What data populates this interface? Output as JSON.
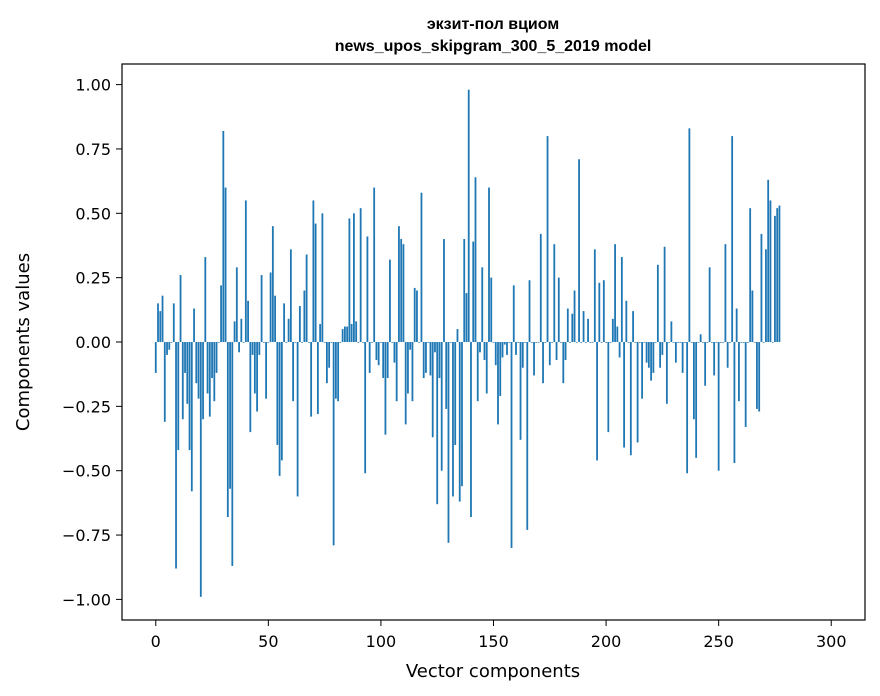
{
  "chart_data": {
    "type": "bar",
    "title_line1": "экзит-пол вциом",
    "title_line2": "news_upos_skipgram_300_5_2019 model",
    "xlabel": "Vector components",
    "ylabel": "Components values",
    "xlim": [
      -15,
      315
    ],
    "ylim": [
      -1.08,
      1.08
    ],
    "xticks": [
      0,
      50,
      100,
      150,
      200,
      250,
      300
    ],
    "xtick_labels": [
      "0",
      "50",
      "100",
      "150",
      "200",
      "250",
      "300"
    ],
    "yticks": [
      1.0,
      0.75,
      0.5,
      0.25,
      0.0,
      -0.25,
      -0.5,
      -0.75,
      -1.0
    ],
    "ytick_labels": [
      "1.00",
      "0.75",
      "0.50",
      "0.25",
      "0.00",
      "−0.25",
      "−0.50",
      "−0.75",
      "−1.00"
    ],
    "bar_color": "#1f77b4",
    "grid": false,
    "x_start": 0,
    "values": [
      -0.12,
      0.15,
      0.12,
      0.18,
      -0.31,
      -0.05,
      -0.03,
      0.0,
      0.15,
      -0.88,
      -0.42,
      0.26,
      -0.3,
      -0.12,
      -0.24,
      -0.42,
      -0.58,
      0.13,
      -0.16,
      -0.22,
      -0.99,
      -0.3,
      0.33,
      -0.2,
      -0.29,
      -0.14,
      -0.23,
      -0.12,
      0.0,
      0.22,
      0.82,
      0.6,
      -0.68,
      -0.57,
      -0.87,
      0.08,
      0.29,
      -0.04,
      0.09,
      0.0,
      0.55,
      0.16,
      -0.35,
      -0.05,
      -0.2,
      -0.27,
      -0.05,
      0.26,
      0.0,
      -0.22,
      0.0,
      0.27,
      0.45,
      0.18,
      -0.4,
      -0.52,
      -0.46,
      0.15,
      0.0,
      0.09,
      0.36,
      -0.23,
      0.0,
      -0.6,
      0.14,
      0.0,
      0.2,
      0.34,
      0.0,
      -0.29,
      0.55,
      0.46,
      -0.28,
      0.07,
      0.5,
      0.0,
      -0.16,
      -0.1,
      0.0,
      -0.79,
      -0.22,
      -0.23,
      0.0,
      0.05,
      0.06,
      0.06,
      0.48,
      0.07,
      0.5,
      0.08,
      0.0,
      0.52,
      0.0,
      -0.51,
      0.41,
      -0.12,
      0.0,
      0.6,
      -0.07,
      -0.09,
      0.0,
      -0.14,
      -0.36,
      -0.14,
      0.32,
      0.0,
      -0.08,
      -0.23,
      0.45,
      0.4,
      0.38,
      -0.32,
      -0.2,
      -0.03,
      -0.23,
      0.21,
      0.2,
      0.0,
      0.58,
      -0.14,
      -0.12,
      0.0,
      -0.13,
      -0.37,
      -0.04,
      -0.63,
      -0.14,
      -0.5,
      0.4,
      -0.26,
      -0.78,
      0.0,
      -0.6,
      -0.4,
      0.05,
      -0.62,
      -0.56,
      0.4,
      0.19,
      0.98,
      -0.68,
      0.39,
      0.64,
      -0.23,
      -0.04,
      0.29,
      -0.07,
      -0.2,
      0.6,
      0.25,
      0.0,
      -0.09,
      -0.32,
      -0.21,
      -0.06,
      -0.01,
      -0.05,
      0.0,
      -0.8,
      0.22,
      -0.05,
      0.0,
      -0.38,
      -0.1,
      0.0,
      -0.73,
      0.24,
      0.0,
      -0.13,
      0.0,
      0.0,
      0.42,
      -0.16,
      0.0,
      0.8,
      -0.09,
      0.0,
      0.38,
      -0.07,
      0.25,
      0.0,
      -0.16,
      -0.07,
      0.13,
      0.0,
      0.11,
      0.2,
      0.0,
      0.71,
      0.0,
      0.12,
      0.0,
      0.09,
      0.0,
      0.0,
      0.36,
      -0.46,
      0.23,
      0.0,
      0.24,
      0.0,
      -0.35,
      0.0,
      0.09,
      0.38,
      0.06,
      -0.06,
      0.33,
      -0.41,
      0.16,
      0.0,
      -0.44,
      0.12,
      0.0,
      -0.39,
      0.0,
      -0.22,
      0.0,
      -0.08,
      -0.1,
      -0.15,
      -0.12,
      0.0,
      0.3,
      -0.1,
      -0.05,
      0.37,
      -0.24,
      0.0,
      0.08,
      0.0,
      -0.08,
      0.0,
      0.0,
      -0.12,
      0.0,
      -0.51,
      0.83,
      0.0,
      -0.3,
      -0.45,
      0.0,
      0.03,
      0.0,
      -0.17,
      0.0,
      0.29,
      0.0,
      -0.13,
      0.0,
      -0.5,
      0.0,
      0.0,
      0.38,
      -0.1,
      0.0,
      0.8,
      -0.47,
      0.13,
      -0.23,
      0.0,
      0.0,
      -0.33,
      0.0,
      0.52,
      0.2,
      0.0,
      -0.26,
      -0.27,
      0.42,
      0.0,
      0.36,
      0.63,
      0.55,
      0.0,
      0.49,
      0.52,
      0.53
    ]
  }
}
